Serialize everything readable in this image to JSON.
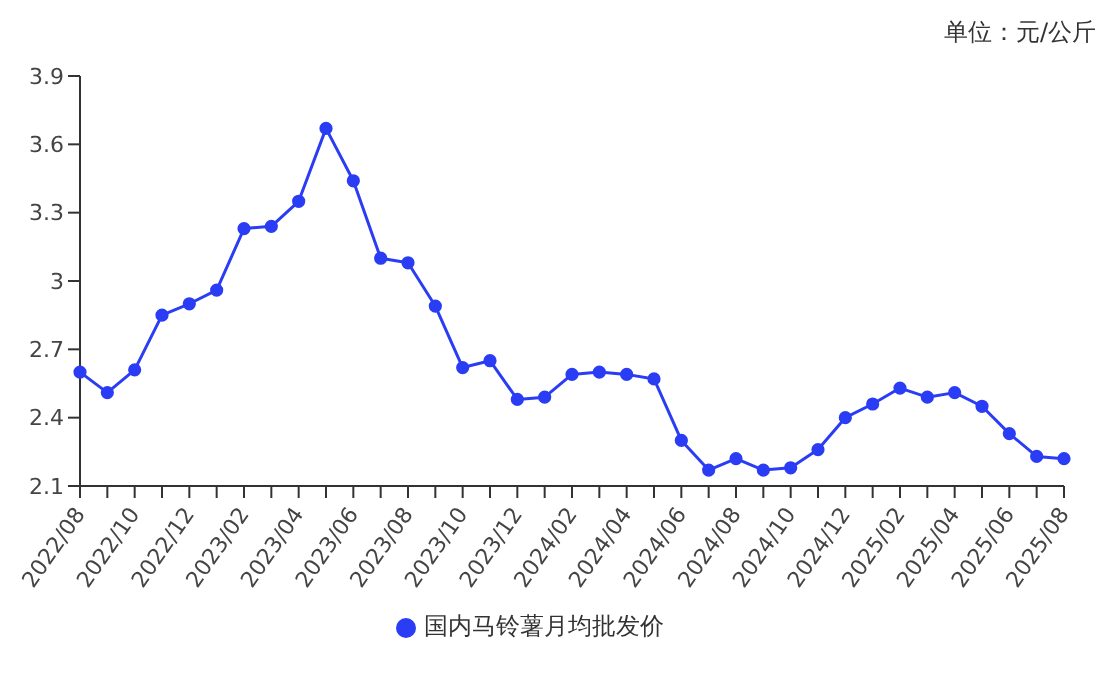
{
  "chart_data": {
    "type": "line",
    "annotations": [
      "单位：元/公斤"
    ],
    "categories": [
      "2022/08",
      null,
      "2022/10",
      null,
      "2022/12",
      null,
      "2023/02",
      null,
      "2023/04",
      null,
      "2023/06",
      null,
      "2023/08",
      null,
      "2023/10",
      null,
      "2023/12",
      null,
      "2024/02",
      null,
      "2024/04",
      null,
      "2024/06",
      null,
      "2024/08",
      null,
      "2024/10",
      null,
      "2024/12",
      null,
      "2025/02",
      null,
      "2025/04",
      null,
      "2025/06",
      null,
      "2025/08"
    ],
    "series": [
      {
        "name": "国内马铃薯月均批发价",
        "color": "#2a3df5",
        "values": [
          2.6,
          2.51,
          2.61,
          2.85,
          2.9,
          2.96,
          3.23,
          3.24,
          3.35,
          3.67,
          3.44,
          3.1,
          3.08,
          2.89,
          2.62,
          2.65,
          2.48,
          2.49,
          2.59,
          2.6,
          2.59,
          2.57,
          2.3,
          2.17,
          2.22,
          2.17,
          2.18,
          2.26,
          2.4,
          2.46,
          2.53,
          2.49,
          2.51,
          2.45,
          2.33,
          2.23,
          2.22
        ]
      }
    ],
    "ylim": [
      2.1,
      3.9
    ],
    "yticks": [
      2.1,
      2.4,
      2.7,
      3,
      3.3,
      3.6,
      3.9
    ],
    "grid": false,
    "legend": "bottom",
    "marker": "circle",
    "line_style": "solid"
  }
}
